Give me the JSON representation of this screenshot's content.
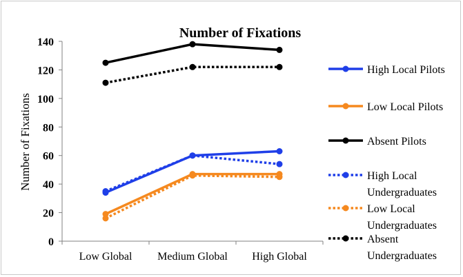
{
  "chart_data": {
    "type": "line",
    "title": "Number of Fixations",
    "xlabel": "",
    "ylabel": "Number of Fixations",
    "categories": [
      "Low Global",
      "Medium Global",
      "High Global"
    ],
    "ylim": [
      0,
      140
    ],
    "yticks": [
      0,
      20,
      40,
      60,
      80,
      100,
      120,
      140
    ],
    "grid": false,
    "legend_position": "right",
    "series": [
      {
        "name": "High Local Pilots",
        "values": [
          34,
          60,
          63
        ],
        "color": "#1f3fe8",
        "dash": "solid",
        "legend_lines": [
          "High Local Pilots"
        ]
      },
      {
        "name": "Low Local Pilots",
        "values": [
          19,
          47,
          47
        ],
        "color": "#f5891f",
        "dash": "solid",
        "legend_lines": [
          "Low Local Pilots"
        ]
      },
      {
        "name": "Absent Pilots",
        "values": [
          125,
          138,
          134
        ],
        "color": "#000000",
        "dash": "solid",
        "legend_lines": [
          "Absent Pilots"
        ]
      },
      {
        "name": "High Local Undergraduates",
        "values": [
          35,
          60,
          54
        ],
        "color": "#1f3fe8",
        "dash": "dotted",
        "legend_lines": [
          "High Local",
          "Undergraduates"
        ]
      },
      {
        "name": "Low Local Undergraduates",
        "values": [
          16,
          46,
          45
        ],
        "color": "#f5891f",
        "dash": "dotted",
        "legend_lines": [
          "Low Local",
          "Undergraduates"
        ]
      },
      {
        "name": "Absent Undergraduates",
        "values": [
          111,
          122,
          122
        ],
        "color": "#000000",
        "dash": "dotted",
        "legend_lines": [
          "Absent",
          "Undergraduates"
        ]
      }
    ]
  }
}
